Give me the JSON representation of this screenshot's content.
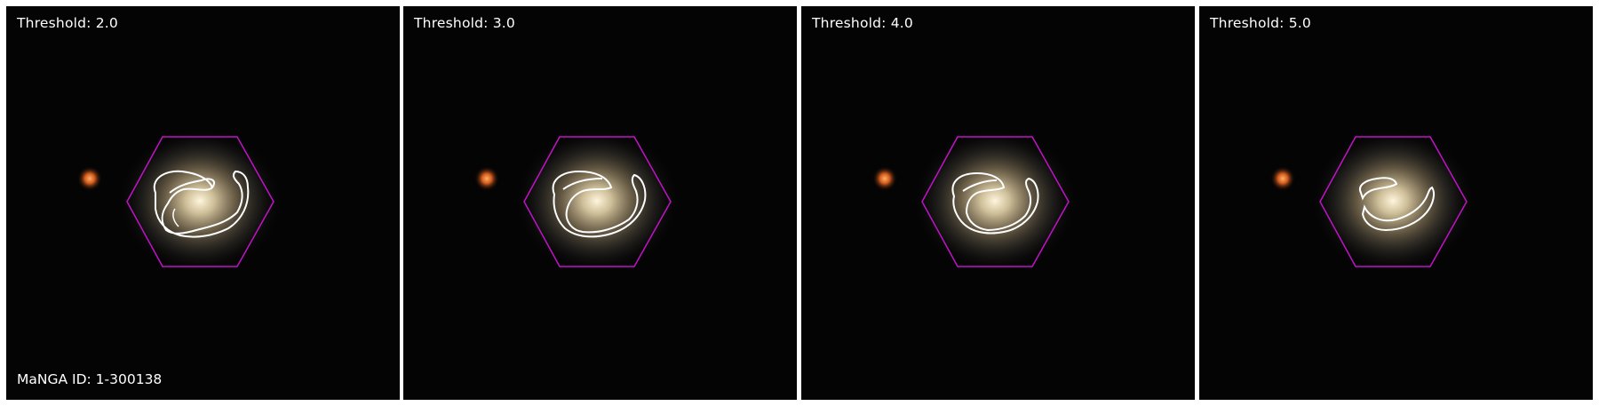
{
  "panels": [
    {
      "label": "Threshold: 2.0"
    },
    {
      "label": "Threshold: 3.0"
    },
    {
      "label": "Threshold: 4.0"
    },
    {
      "label": "Threshold: 5.0"
    }
  ],
  "footer": {
    "manga_id": "MaNGA ID: 1-300138"
  },
  "colors": {
    "ifu_hexagon": "#c012c8",
    "contour": "#ffffff",
    "background": "#050404"
  }
}
